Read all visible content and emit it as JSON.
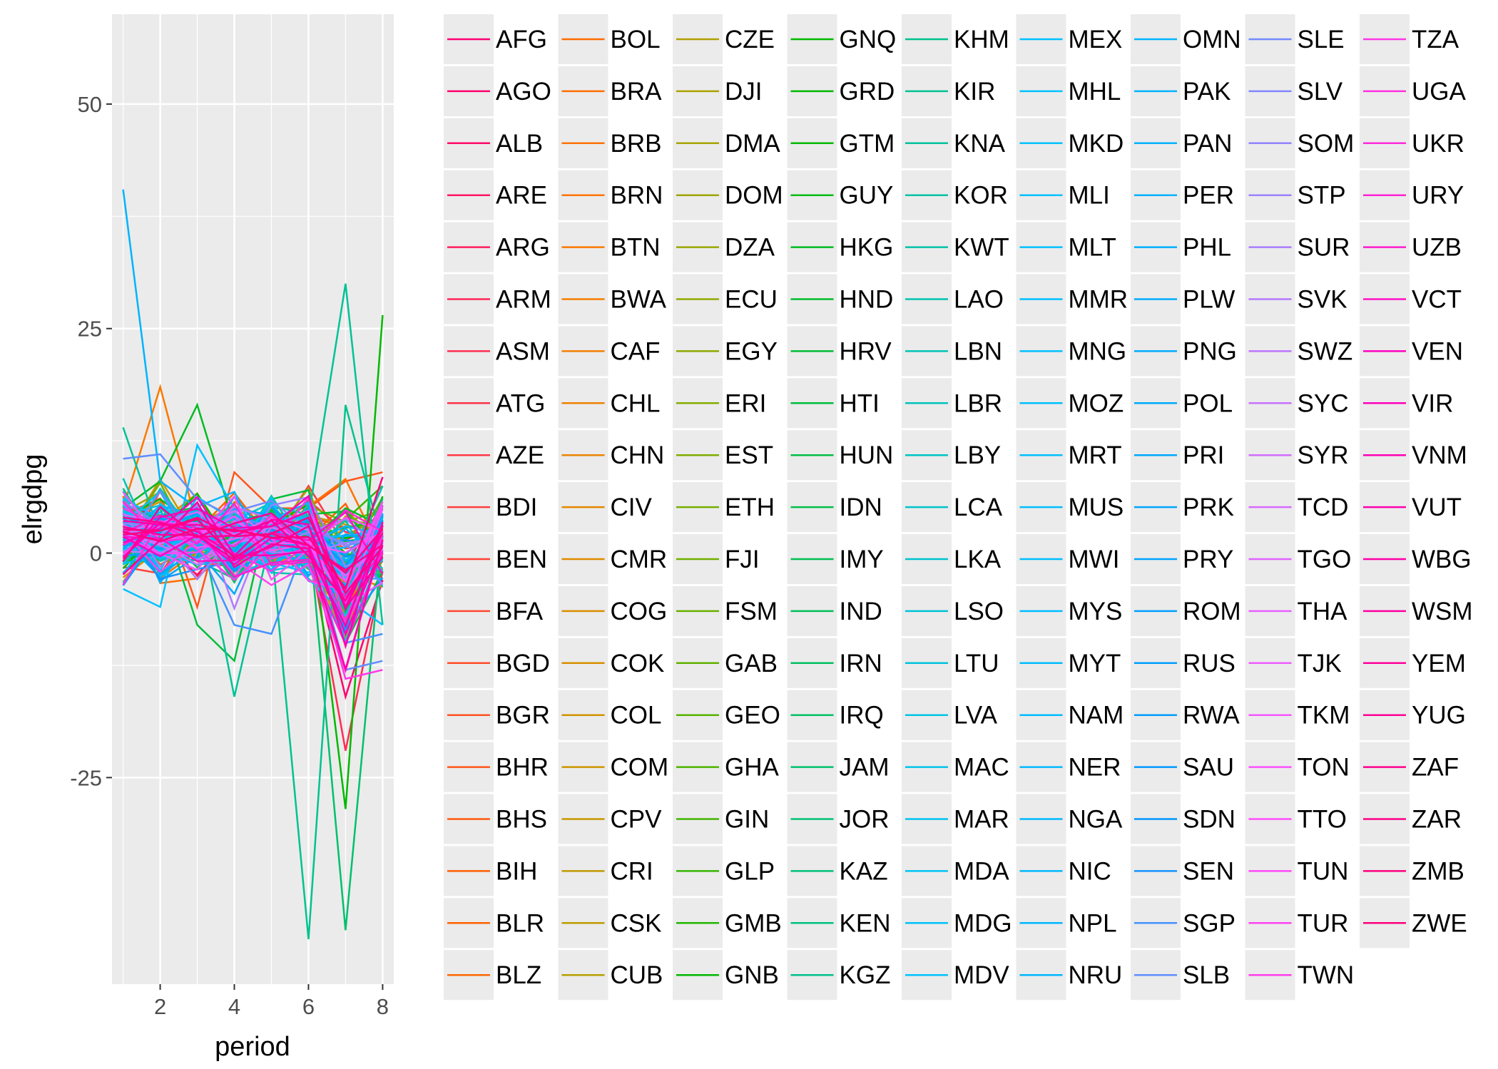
{
  "chart_data": {
    "type": "line",
    "title": "",
    "xlabel": "period",
    "ylabel": "elrgdpg",
    "xlim": [
      0.7,
      8.3
    ],
    "ylim": [
      -48,
      60
    ],
    "x_ticks": [
      2,
      4,
      6,
      8
    ],
    "y_ticks": [
      -25,
      0,
      25,
      50
    ],
    "x": [
      1,
      2,
      3,
      4,
      5,
      6,
      7,
      8
    ],
    "grid": true,
    "legend_position": "right",
    "legend_columns": 9,
    "panel_background": "#ebebeb",
    "legend": [
      "AFG",
      "AGO",
      "ALB",
      "ARE",
      "ARG",
      "ARM",
      "ASM",
      "ATG",
      "AZE",
      "BDI",
      "BEN",
      "BFA",
      "BGD",
      "BGR",
      "BHR",
      "BHS",
      "BIH",
      "BLR",
      "BLZ",
      "BOL",
      "BRA",
      "BRB",
      "BRN",
      "BTN",
      "BWA",
      "CAF",
      "CHL",
      "CHN",
      "CIV",
      "CMR",
      "COG",
      "COK",
      "COL",
      "COM",
      "CPV",
      "CRI",
      "CSK",
      "CUB",
      "CZE",
      "DJI",
      "DMA",
      "DOM",
      "DZA",
      "ECU",
      "EGY",
      "ERI",
      "EST",
      "ETH",
      "FJI",
      "FSM",
      "GAB",
      "GEO",
      "GHA",
      "GIN",
      "GLP",
      "GMB",
      "GNB",
      "GNQ",
      "GRD",
      "GTM",
      "GUY",
      "HKG",
      "HND",
      "HRV",
      "HTI",
      "HUN",
      "IDN",
      "IMY",
      "IND",
      "IRN",
      "IRQ",
      "JAM",
      "JOR",
      "KAZ",
      "KEN",
      "KGZ",
      "KHM",
      "KIR",
      "KNA",
      "KOR",
      "KWT",
      "LAO",
      "LBN",
      "LBR",
      "LBY",
      "LCA",
      "LKA",
      "LSO",
      "LTU",
      "LVA",
      "MAC",
      "MAR",
      "MDA",
      "MDG",
      "MDV",
      "MEX",
      "MHL",
      "MKD",
      "MLI",
      "MLT",
      "MMR",
      "MNG",
      "MOZ",
      "MRT",
      "MUS",
      "MWI",
      "MYS",
      "MYT",
      "NAM",
      "NER",
      "NGA",
      "NIC",
      "NPL",
      "NRU",
      "OMN",
      "PAK",
      "PAN",
      "PER",
      "PHL",
      "PLW",
      "PNG",
      "POL",
      "PRI",
      "PRK",
      "PRY",
      "ROM",
      "RUS",
      "RWA",
      "SAU",
      "SDN",
      "SEN",
      "SGP",
      "SLB",
      "SLE",
      "SLV",
      "SOM",
      "STP",
      "SUR",
      "SVK",
      "SWZ",
      "SYC",
      "SYR",
      "TCD",
      "TGO",
      "THA",
      "TJK",
      "TKM",
      "TON",
      "TTO",
      "TUN",
      "TUR",
      "TWN",
      "TZA",
      "UGA",
      "UKR",
      "URY",
      "UZB",
      "VCT",
      "VEN",
      "VIR",
      "VNM",
      "VUT",
      "WBG",
      "WSM",
      "YEM",
      "YUG",
      "ZAF",
      "ZAR",
      "ZMB",
      "ZWE"
    ],
    "notable_series": [
      {
        "name": "PAK",
        "values": [
          40.5,
          8,
          5,
          2,
          0,
          1,
          3,
          2
        ]
      },
      {
        "name": "BTN",
        "values": [
          5,
          18.5,
          3,
          2,
          1,
          0,
          2,
          4
        ]
      },
      {
        "name": "HKG",
        "values": [
          5,
          8,
          16.5,
          3,
          2,
          1,
          5,
          3
        ]
      },
      {
        "name": "KIR",
        "values": [
          14,
          2,
          5,
          -16,
          2,
          4,
          30,
          -8
        ]
      },
      {
        "name": "KHM",
        "values": [
          3,
          5,
          2,
          4,
          1,
          -43,
          16.5,
          1
        ]
      },
      {
        "name": "JAM",
        "values": [
          2,
          4,
          3,
          2,
          1,
          3,
          -42,
          2
        ]
      },
      {
        "name": "GNQ",
        "values": [
          4,
          6,
          3,
          1,
          2,
          5,
          -28.5,
          26.5
        ]
      },
      {
        "name": "ASM",
        "values": [
          2,
          3,
          1,
          2,
          0,
          1,
          -22,
          -2
        ]
      },
      {
        "name": "AGO",
        "values": [
          3,
          2,
          1,
          0,
          2,
          1,
          -16,
          -3
        ]
      },
      {
        "name": "HTI",
        "values": [
          2,
          5,
          -8,
          -12,
          6,
          7,
          -10,
          -2
        ]
      },
      {
        "name": "BHR",
        "values": [
          4,
          6,
          -6,
          9,
          5,
          5,
          8,
          9
        ]
      },
      {
        "name": "SLB",
        "values": [
          10.5,
          11,
          6,
          4,
          3,
          2,
          -13,
          -12
        ]
      },
      {
        "name": "TZA",
        "values": [
          5,
          3,
          2,
          0,
          -2,
          1,
          -14,
          -13
        ]
      },
      {
        "name": "SGP",
        "values": [
          0,
          3,
          1,
          -8,
          -9,
          2,
          -10,
          -9
        ]
      },
      {
        "name": "MLI",
        "values": [
          -4,
          -6,
          12,
          5,
          2,
          3,
          -5,
          -8
        ]
      }
    ]
  }
}
